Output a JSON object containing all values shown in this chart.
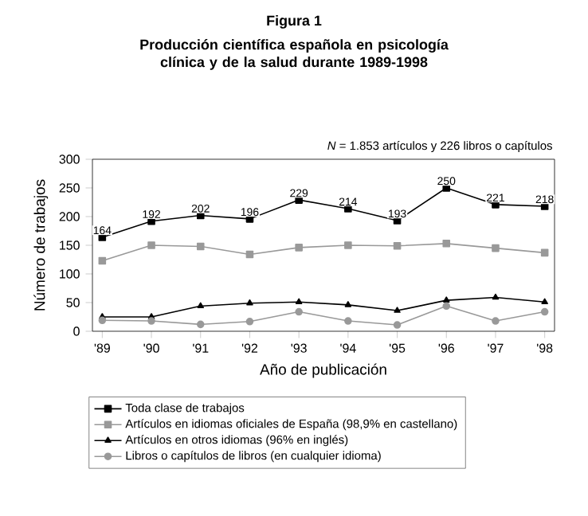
{
  "chart_data": {
    "type": "line",
    "title": "Figura 1",
    "subtitle": "Producción científica española en psicología clínica y de la salud durante 1989-1998",
    "xlabel": "Año de publicación",
    "ylabel": "Número de trabajos",
    "annotations": [
      "*N* = 1.853 artículos y 226 libros o capítulos"
    ],
    "categories": [
      "'89",
      "'90",
      "'91",
      "'92",
      "'93",
      "'94",
      "'95",
      "'96",
      "'97",
      "'98"
    ],
    "series": [
      {
        "name": "Toda clase de trabajos",
        "color": "#000000",
        "marker": "square",
        "values": [
          164,
          192,
          202,
          196,
          229,
          214,
          193,
          250,
          221,
          218
        ],
        "value_labels": [
          "164",
          "192",
          "202",
          "196",
          "229",
          "214",
          "193",
          "250",
          "221",
          "218"
        ]
      },
      {
        "name": "Artículos en idiomas oficiales de España (98,9% en castellano)",
        "color": "#999999",
        "marker": "square",
        "values": [
          123,
          150,
          148,
          134,
          146,
          150,
          149,
          153,
          145,
          137
        ]
      },
      {
        "name": "Artículos en otros idiomas (96% en inglés)",
        "color": "#000000",
        "marker": "triangle",
        "values": [
          25,
          25,
          44,
          49,
          51,
          46,
          36,
          54,
          59,
          51
        ]
      },
      {
        "name": "Libros o capítulos de libros (en cualquier idioma)",
        "color": "#999999",
        "marker": "circle",
        "values": [
          19,
          18,
          12,
          17,
          34,
          18,
          11,
          44,
          18,
          34
        ]
      }
    ],
    "ylim": [
      0,
      300
    ],
    "yticks": [
      0,
      50,
      100,
      150,
      200,
      250,
      300
    ],
    "legend": "bottom",
    "grid": false
  }
}
